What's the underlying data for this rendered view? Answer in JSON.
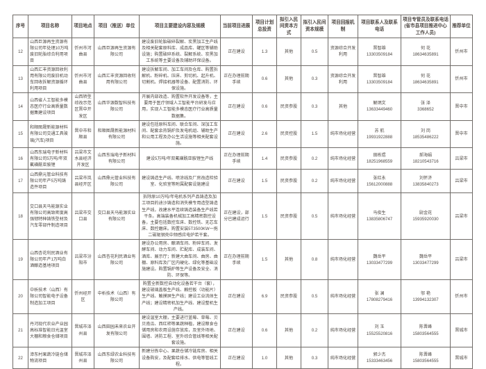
{
  "document": {
    "type": "project-table",
    "accent_border_color": "#6e6a66",
    "text_color": "#4d4742"
  },
  "table": {
    "headers": [
      "序号",
      "项目名称",
      "项目地点",
      "项目（推送）单位",
      "项目主要建设内容及规模",
      "当前项目进展",
      "项目计划总投资",
      "拟引入民间资本方式",
      "拟引入民间资本规模",
      "项目回报机制",
      "项目联系人及联系电话",
      "项目专管员及联系电话(省市县项目推进中心工作人员)",
      "推荐单位"
    ],
    "rows": [
      {
        "seq": "12",
        "name": "山西巨源再生资源有限公司年处理10万吨废旧轮胎综合利用项目",
        "location": "忻州市河曲县",
        "unit": "山西巨源再生资源有限公司",
        "content": "建设废旧轮胎破碎裂解、炭黑加工生产线及相关配套原料库、成品库、罐区等辅助设施；购置破碎系统、裂解系统、炭黑加工系统等主要设备及辅助环保设备。",
        "progress": "正在建设",
        "investment": "1.3",
        "capital_mode": "其他",
        "capital_scale": "0.5",
        "return_mechanism": "资源综合开发利用",
        "contact": "晋智雄\n13303509184",
        "supervisor": "何 花\n18634635891",
        "recommender": "忻州市"
      },
      {
        "seq": "13",
        "name": "山西汇丰资源回收利用有限公司废旧机动车回收拆解资源循环利用项目",
        "location": "忻州市河曲县",
        "unit": "山西汇丰资源回收利用有限公司",
        "content": "建设拆解车间、加工车间及仓库、购置拆解机、粉碎机、压床、剪切机、起升机、切割机、焊接机器等设备、配置消防、环保设施。",
        "progress": "正在办理前期手续",
        "investment": "0.6",
        "capital_mode": "其他",
        "capital_scale": "0.3",
        "return_mechanism": "资源综合开发利用",
        "contact": "晋智雄\n13303509184",
        "supervisor": "何 花\n18634635891",
        "recommender": "忻州市"
      },
      {
        "seq": "14",
        "name": "山西省人工智能多模态医疗行业高质量数据集建设项目",
        "location": "山西转型综改示范区晋中开发区",
        "unit": "山西华源数智科技有限公司",
        "content": "开展内部改造、购置软件开发设备等，主要用于医疗领域人工智能平台研发与应用，实现人工智能多模态医疗行业高质量数据集。",
        "progress": "正在建设",
        "investment": "0.6",
        "capital_mode": "民资参股",
        "capital_scale": "0.3",
        "return_mechanism": "其他",
        "contact": "解炳文\n13633449460",
        "supervisor": "张 泽\n3368652",
        "recommender": "晋中市"
      },
      {
        "seq": "15",
        "name": "和顺图晟新能源材料有限公司交通工具玻璃(汽车)项目",
        "location": "晋中市和顺县",
        "unit": "和顺图晟新能源材料有限公司",
        "content": "建设包括原料车间、联合车间、深加工车间、配套余热锅炉及发电机组、辅助生产和公用工程及办公生活设施等相关配套设施。",
        "progress": "正在建设",
        "investment": "2.6",
        "capital_mode": "民资控股",
        "capital_scale": "1.5",
        "return_mechanism": "纯市场化经营",
        "contact": "苏 航\n19931922888",
        "supervisor": "刘 岗\n18535486222",
        "recommender": "晋中市"
      },
      {
        "seq": "16",
        "name": "山西东瑞电子新材料有限公司5万吨/年双氟磺酰亚胺锂",
        "location": "吕梁市文水县经济开发区",
        "unit": "山西东瑞电子新材料有限公司",
        "content": "建设5万吨/年双氟磺酰亚胺锂生产线",
        "progress": "正在办理前期手续",
        "investment": "1.4",
        "capital_mode": "民资参股",
        "capital_scale": "0.2",
        "return_mechanism": "纯市场化经营",
        "contact": "田栋煜\n18251968559",
        "supervisor": "郝海娟\n18210543716",
        "recommender": "吕梁市"
      },
      {
        "seq": "17",
        "name": "山西鼎元管业科技有限公司年产5万吨铸造件项目",
        "location": "吕梁市岚县经开区",
        "unit": "山西鼎元管业科技有限公司",
        "content": "建设铸造生产线、喷涂线及厂房改造检验室、化验室等附属配套设施建设",
        "progress": "正在建设",
        "investment": "1.5",
        "capital_mode": "民资参股",
        "capital_scale": "0.2",
        "return_mechanism": "纯市场化经营",
        "contact": "张红永\n15612000888",
        "supervisor": "刘怀济\n13835840273",
        "recommender": "吕梁市"
      },
      {
        "seq": "18",
        "name": "交口县天马能源实业有限公司高致密度高强韧特种铸铁型材及汽车零部件制造项目",
        "location": "吕梁市交口县",
        "unit": "交口县天马能源实业有限公司",
        "content": "拆除原10万吨/年电机系列产品铸造及加工项目的迪沙铸造和消失模专用造型铸造生产线，改建水平连续铸造装备生产线若干条。高端装备机械加工高精密数控设备，主要包括数控车床、数控铣、无芯车床、数控磨床。购置安装5T3500KW一拖二磁轭钢壳中频感应电炉若干套。",
        "progress": "正在建设，部分已建成运行",
        "investment": "1.5",
        "capital_mode": "民资参股",
        "capital_scale": "0.5",
        "return_mechanism": "纯市场化经营",
        "contact": "马俊生\n13835806747",
        "supervisor": "尉金花\n15935920030",
        "recommender": "吕梁市"
      },
      {
        "seq": "19",
        "name": "山西杏花利民酒业有限公司年产1万吨白酒酿造基地项目",
        "location": "吕梁市汾阳市",
        "unit": "山西杏花利民酒业有限公司",
        "content": "建设办公用房、酿酒车间、粉碎车间、发酵车间、动力车间、贮配库、成装车间、酒库、展示厅；新建大曲车间、曲房、曲棚、原料库及厂区内硬化、绿化等基础设施建设。购置锅炉等生产设备及安全、消防、环保等。",
        "progress": "正在办理前期手续",
        "investment": "1.5",
        "capital_mode": "其他",
        "capital_scale": "0.8",
        "return_mechanism": "纯市场化经营",
        "contact": "魏岳平\n13033477299",
        "supervisor": "魏岳平\n13033477299",
        "recommender": "吕梁市"
      },
      {
        "seq": "20",
        "name": "中析技术（山西）有限公司智能电子设备制造加工项目",
        "location": "忻州经开区",
        "unit": "中析技术（山西）有限公司",
        "content": "购置全新数控自动化设备若干台（套），建设玻璃盖板生产线、触控板（功能片）生产线、触摸屏生产线；建设工业流体生产线；建设精密机加生产线、建设整机生产线。",
        "progress": "正在建设",
        "investment": "6.9",
        "capital_mode": "民资参股",
        "capital_scale": "0.5",
        "return_mechanism": "纯市场化经营",
        "contact": "张 澜\n17808279416",
        "supervisor": "邬 艳\n13994132307",
        "recommender": "忻州市"
      },
      {
        "seq": "21",
        "name": "丹河现代农业产业园高标准智能日光温室大棚和粮食仓储项目",
        "location": "晋城市泽州县",
        "unit": "山西田园未来农业开发有限公司",
        "content": "建设温室大棚，主要进行蓝莓、草莓、贝贝南瓜、西红柿等果蔬种植，建设粮食仓储用房和农用设施存放库，及室外场地、围墙、消防工程、室外综合管线等相关配套设施。",
        "progress": "正在建设",
        "investment": "0.6",
        "capital_mode": "其他",
        "capital_scale": "0.2",
        "return_mechanism": "纯市场化经营",
        "contact": "刘 玉\n15525520816",
        "supervisor": "陈晋峰\n15803564555",
        "recommender": "晋城市"
      },
      {
        "seq": "22",
        "name": "漳东村果蔬冷链仓储物流项目",
        "location": "晋城市泽州县",
        "unit": "山西东绿农业科技有限公司",
        "content": "新建分拣中心、果蔬仓储冷链库房、相关设备购安，及配套给排水、供电等管线工程。",
        "progress": "正在建设",
        "investment": "1.0",
        "capital_mode": "其他",
        "capital_scale": "0.3",
        "return_mechanism": "纯市场化经营",
        "contact": "郭少杰\n15333463456",
        "supervisor": "陈晋峰\n15803564555",
        "recommender": "晋城市"
      }
    ]
  }
}
